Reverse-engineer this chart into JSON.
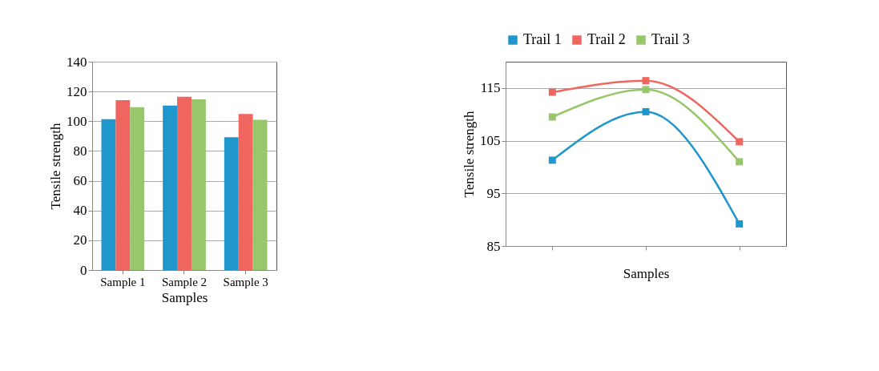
{
  "chart_data": [
    {
      "type": "bar",
      "xlabel": "Samples",
      "ylabel": "Tensile strength",
      "categories": [
        "Sample 1",
        "Sample 2",
        "Sample 3"
      ],
      "ylim": [
        0,
        140
      ],
      "yticks": [
        0,
        20,
        40,
        60,
        80,
        100,
        120,
        140
      ],
      "grid": "y",
      "series": [
        {
          "color": "#1f97cc",
          "values": [
            101.3,
            110.5,
            89.2
          ]
        },
        {
          "color": "#ef6660",
          "values": [
            114.2,
            116.4,
            104.8
          ]
        },
        {
          "color": "#97c66b",
          "values": [
            109.5,
            114.7,
            101.0
          ]
        }
      ]
    },
    {
      "type": "line",
      "xlabel": "Samples",
      "ylabel": "Tensile strength",
      "categories": [
        null,
        null,
        null
      ],
      "ylim": [
        85,
        120
      ],
      "yticks": [
        85,
        95,
        105,
        115
      ],
      "grid": "y",
      "legend": "top",
      "marker": "square",
      "series": [
        {
          "name": "Trail 1",
          "color": "#1f97cc",
          "values": [
            101.3,
            110.5,
            89.2
          ]
        },
        {
          "name": "Trail 2",
          "color": "#ef6660",
          "values": [
            114.2,
            116.4,
            104.8
          ]
        },
        {
          "name": "Trail 3",
          "color": "#97c66b",
          "values": [
            109.5,
            114.7,
            101.0
          ]
        }
      ]
    }
  ]
}
